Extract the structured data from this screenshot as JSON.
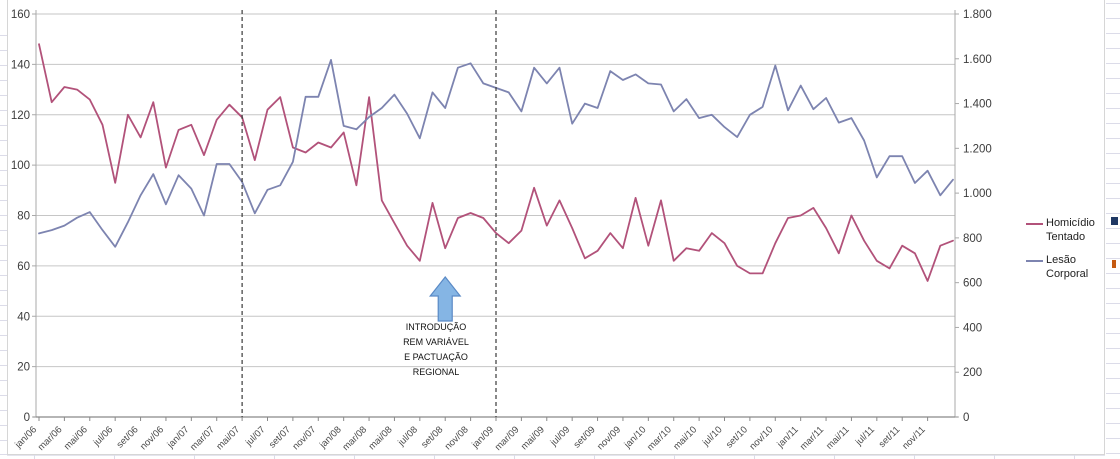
{
  "chart_data": {
    "type": "line",
    "title": "",
    "months": [
      "jan/06",
      "fev/06",
      "mar/06",
      "abr/06",
      "mai/06",
      "jun/06",
      "jul/06",
      "ago/06",
      "set/06",
      "out/06",
      "nov/06",
      "dez/06",
      "jan/07",
      "fev/07",
      "mar/07",
      "abr/07",
      "mai/07",
      "jun/07",
      "jul/07",
      "ago/07",
      "set/07",
      "out/07",
      "nov/07",
      "dez/07",
      "jan/08",
      "fev/08",
      "mar/08",
      "abr/08",
      "mai/08",
      "jun/08",
      "jul/08",
      "ago/08",
      "set/08",
      "out/08",
      "nov/08",
      "dez/08",
      "jan/09",
      "fev/09",
      "mar/09",
      "abr/09",
      "mai/09",
      "jun/09",
      "jul/09",
      "ago/09",
      "set/09",
      "out/09",
      "nov/09",
      "dez/09",
      "jan/10",
      "fev/10",
      "mar/10",
      "abr/10",
      "mai/10",
      "jun/10",
      "jul/10",
      "ago/10",
      "set/10",
      "out/10",
      "nov/10",
      "dez/10",
      "jan/11",
      "fev/11",
      "mar/11",
      "abr/11",
      "mai/11",
      "jun/11",
      "jul/11",
      "ago/11",
      "set/11",
      "out/11",
      "nov/11",
      "dez/11",
      "jan/12"
    ],
    "x_tick_labels": [
      "jan/06",
      "mar/06",
      "mai/06",
      "jul/06",
      "set/06",
      "nov/06",
      "jan/07",
      "mar/07",
      "mai/07",
      "jul/07",
      "set/07",
      "nov/07",
      "jan/08",
      "mar/08",
      "mai/08",
      "jul/08",
      "set/08",
      "nov/08",
      "jan/09",
      "mar/09",
      "mai/09",
      "jul/09",
      "set/09",
      "nov/09",
      "jan/10",
      "mar/10",
      "mai/10",
      "jul/10",
      "set/10",
      "nov/10",
      "jan/11",
      "mar/11",
      "mai/11",
      "jul/11",
      "set/11",
      "nov/11"
    ],
    "series": [
      {
        "name": "Homicídio Tentado",
        "axis": "left",
        "color": "#b2527a",
        "values": [
          148,
          125,
          131,
          130,
          126,
          116,
          93,
          120,
          111,
          125,
          99,
          114,
          116,
          104,
          118,
          124,
          119,
          102,
          122,
          127,
          107,
          105,
          109,
          107,
          113,
          92,
          127,
          86,
          77,
          68,
          62,
          85,
          67,
          79,
          81,
          79,
          73,
          69,
          74,
          91,
          76,
          86,
          75,
          63,
          66,
          73,
          67,
          87,
          68,
          86,
          62,
          67,
          66,
          73,
          69,
          60,
          57,
          57,
          69,
          79,
          80,
          83,
          75,
          65,
          80,
          70,
          62,
          59,
          68,
          65,
          54,
          68,
          70
        ]
      },
      {
        "name": "Lesão Corporal",
        "axis": "right",
        "color": "#7d84b0",
        "values": [
          820,
          835,
          855,
          890,
          915,
          835,
          760,
          870,
          990,
          1085,
          950,
          1080,
          1020,
          900,
          1130,
          1130,
          1050,
          910,
          1015,
          1035,
          1140,
          1430,
          1430,
          1595,
          1300,
          1285,
          1340,
          1380,
          1440,
          1355,
          1245,
          1450,
          1380,
          1560,
          1580,
          1490,
          1470,
          1450,
          1365,
          1560,
          1490,
          1560,
          1310,
          1400,
          1380,
          1545,
          1505,
          1530,
          1490,
          1485,
          1365,
          1420,
          1335,
          1350,
          1295,
          1250,
          1350,
          1385,
          1570,
          1370,
          1480,
          1375,
          1425,
          1315,
          1335,
          1235,
          1070,
          1165,
          1165,
          1045,
          1100,
          990,
          1060
        ]
      }
    ],
    "y_left": {
      "min": 0,
      "max": 160,
      "step": 20,
      "tick_labels": [
        "0",
        "20",
        "40",
        "60",
        "80",
        "100",
        "120",
        "140",
        "160"
      ]
    },
    "y_right": {
      "min": 0,
      "max": 1800,
      "step": 200,
      "tick_labels": [
        "0",
        "200",
        "400",
        "600",
        "800",
        "1.000",
        "1.200",
        "1.400",
        "1.600",
        "1.800"
      ]
    },
    "grid": "horizontal",
    "legend_position": "right",
    "legend": {
      "items": [
        {
          "lines": [
            "Homicídio",
            "Tentado"
          ],
          "color": "#b2527a"
        },
        {
          "lines": [
            "Lesão",
            "Corporal"
          ],
          "color": "#7d84b0"
        }
      ]
    },
    "annotation": {
      "lines": [
        "INTRODUÇÃO",
        "REM VARIÁVEL",
        "E PACTUAÇÃO",
        "REGIONAL"
      ]
    },
    "vlines": [
      {
        "at_index": 16
      },
      {
        "at_index": 36
      }
    ],
    "arrow_up": {
      "at_index": 32
    },
    "colors": {
      "gridline": "#c6c6c6",
      "axis": "#898989",
      "dashed_line": "#3a3a3a",
      "arrow_fill": "#85b5e4",
      "arrow_stroke": "#5a8ac6",
      "axis_text": "#3c3c3c",
      "fragment_navy": "#1f3864",
      "fragment_orange": "#c55a11"
    }
  }
}
